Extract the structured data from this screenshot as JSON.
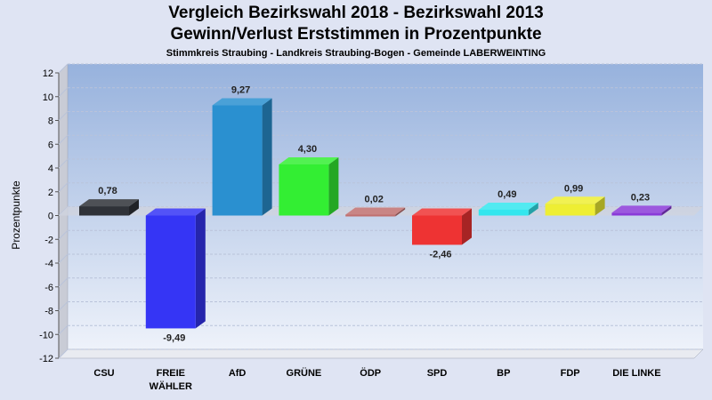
{
  "header": {
    "title_line1": "Vergleich Bezirkswahl 2018 - Bezirkswahl 2013",
    "title_line2": "Gewinn/Verlust Erststimmen in Prozentpunkte",
    "subtitle": "Stimmkreis Straubing - Landkreis Straubing-Bogen - Gemeinde LABERWEINTING"
  },
  "chart_data": {
    "type": "bar",
    "title": "Vergleich Bezirkswahl 2018 - Bezirkswahl 2013 / Gewinn/Verlust Erststimmen in Prozentpunkte",
    "subtitle": "Stimmkreis Straubing - Landkreis Straubing-Bogen - Gemeinde LABERWEINTING",
    "xlabel": "",
    "ylabel": "Prozentpunkte",
    "ylim": [
      -12,
      12
    ],
    "yticks": [
      12,
      10,
      8,
      6,
      4,
      2,
      0,
      -2,
      -4,
      -6,
      -8,
      -10,
      -12
    ],
    "grid": true,
    "categories": [
      {
        "label": "CSU",
        "label2": ""
      },
      {
        "label": "FREIE",
        "label2": "WÄHLER"
      },
      {
        "label": "AfD",
        "label2": ""
      },
      {
        "label": "GRÜNE",
        "label2": ""
      },
      {
        "label": "ÖDP",
        "label2": ""
      },
      {
        "label": "SPD",
        "label2": ""
      },
      {
        "label": "BP",
        "label2": ""
      },
      {
        "label": "FDP",
        "label2": ""
      },
      {
        "label": "DIE LINKE",
        "label2": ""
      }
    ],
    "values": [
      0.78,
      -9.49,
      9.27,
      4.3,
      0.02,
      -2.46,
      0.49,
      0.99,
      0.23
    ],
    "value_labels": [
      "0,78",
      "-9,49",
      "9,27",
      "4,30",
      "0,02",
      "-2,46",
      "0,49",
      "0,99",
      "0,23"
    ],
    "colors": [
      "#2f3238",
      "#3535f5",
      "#2a90d0",
      "#33ee33",
      "#c07070",
      "#ee3333",
      "#33e6ee",
      "#eeee33",
      "#8a3ad8"
    ]
  }
}
